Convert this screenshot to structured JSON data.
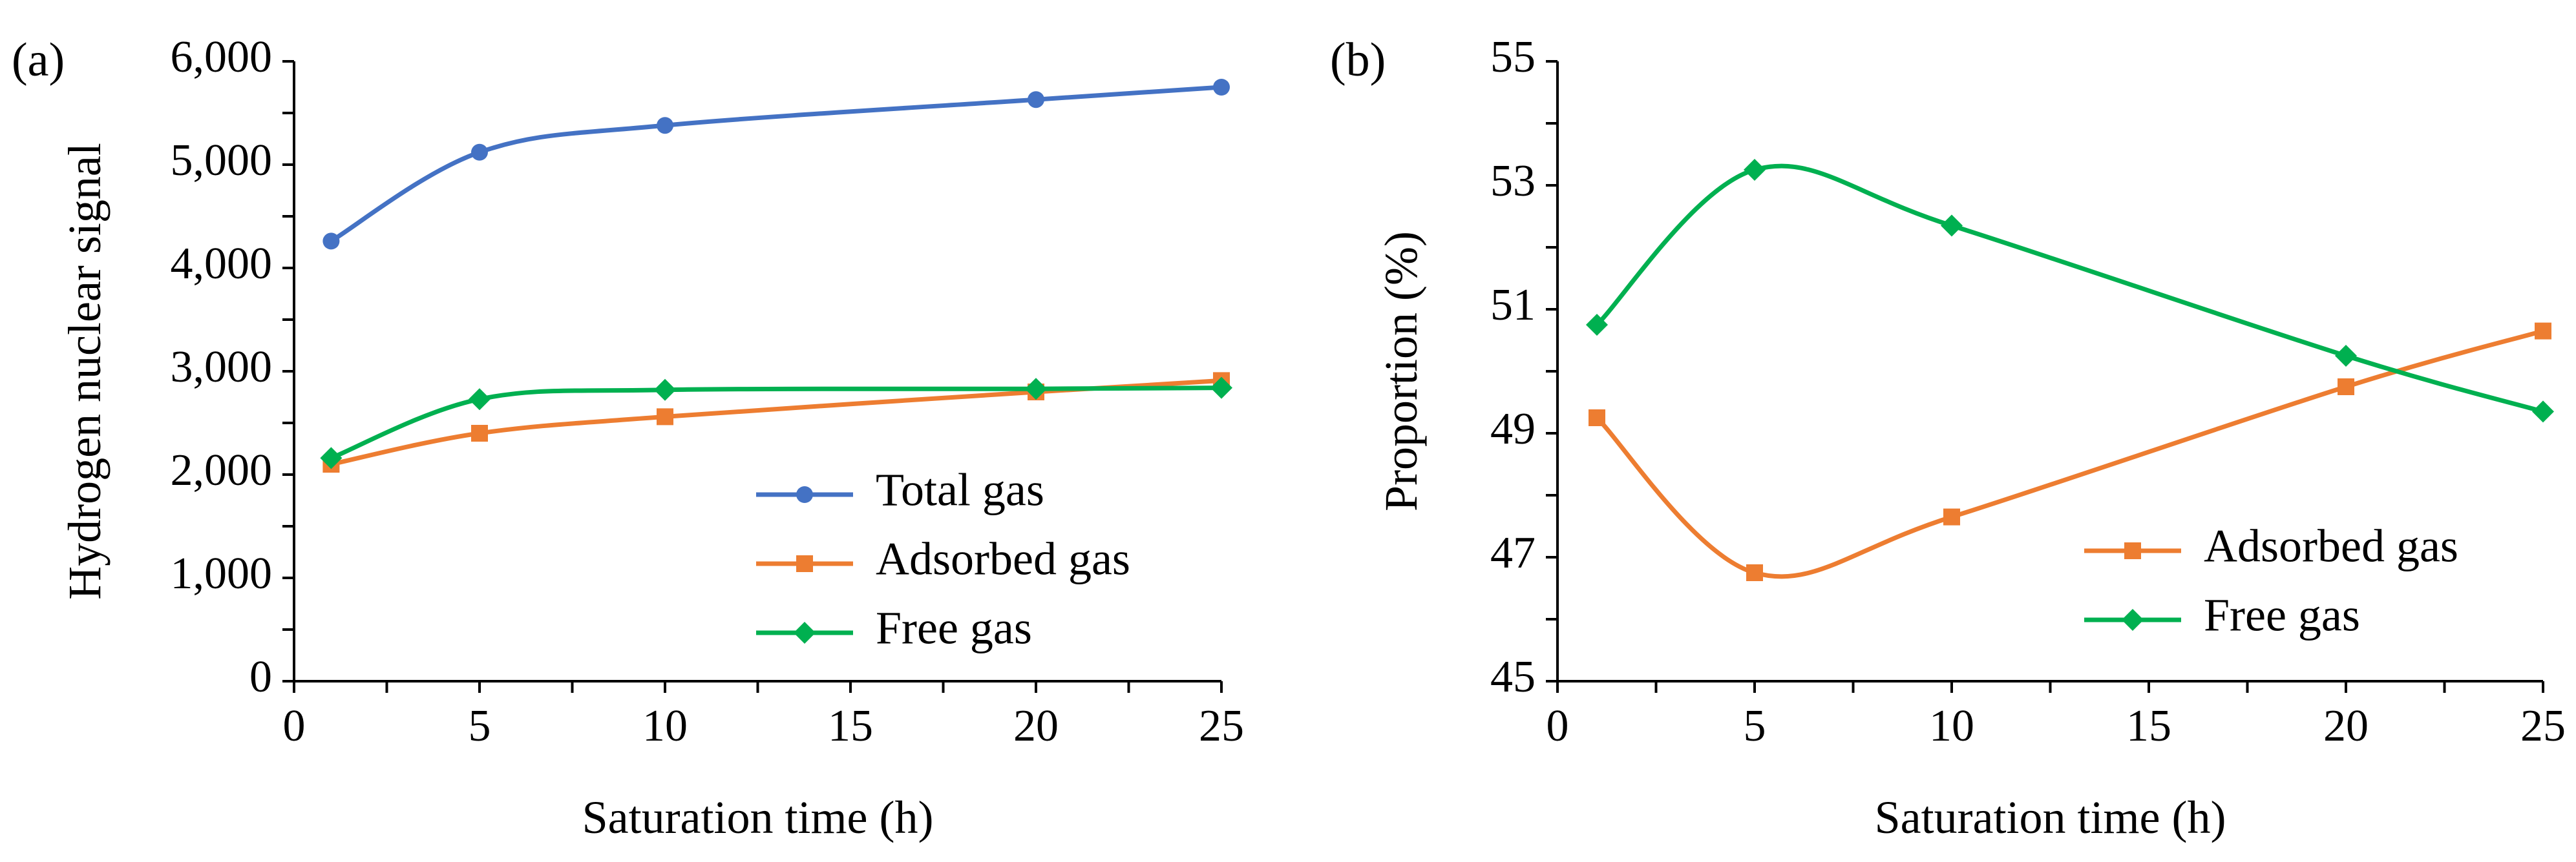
{
  "chart_data": [
    {
      "panel_label": "(a)",
      "type": "line",
      "title": "",
      "xlabel": "Saturation time (h)",
      "ylabel": "Hydrogen nuclear signal",
      "xlim": [
        0,
        25
      ],
      "ylim": [
        0,
        6000
      ],
      "x_ticks": [
        0,
        5,
        10,
        15,
        20,
        25
      ],
      "x_tick_labels": [
        "0",
        "5",
        "10",
        "15",
        "20",
        "25"
      ],
      "y_ticks": [
        0,
        1000,
        2000,
        3000,
        4000,
        5000,
        6000
      ],
      "y_tick_labels": [
        "0",
        "1,000",
        "2,000",
        "3,000",
        "4,000",
        "5,000",
        "6,000"
      ],
      "grid": false,
      "legend_position": "bottom-right",
      "x": [
        1,
        5,
        10,
        20,
        25
      ],
      "series": [
        {
          "name": "Total gas",
          "color": "#4472C4",
          "marker": "circle",
          "values": [
            4260,
            5120,
            5380,
            5630,
            5750
          ]
        },
        {
          "name": "Adsorbed gas",
          "color": "#ED7D31",
          "marker": "square",
          "values": [
            2100,
            2400,
            2560,
            2800,
            2910
          ]
        },
        {
          "name": "Free gas",
          "color": "#00B050",
          "marker": "diamond",
          "values": [
            2160,
            2730,
            2820,
            2830,
            2840
          ]
        }
      ]
    },
    {
      "panel_label": "(b)",
      "type": "line",
      "title": "",
      "xlabel": "Saturation time (h)",
      "ylabel": "Proportion (%)",
      "xlim": [
        0,
        25
      ],
      "ylim": [
        45,
        55
      ],
      "x_ticks": [
        0,
        5,
        10,
        15,
        20,
        25
      ],
      "x_tick_labels": [
        "0",
        "5",
        "10",
        "15",
        "20",
        "25"
      ],
      "y_ticks": [
        45,
        47,
        49,
        51,
        53,
        55
      ],
      "y_tick_labels": [
        "45",
        "47",
        "49",
        "51",
        "53",
        "55"
      ],
      "grid": false,
      "legend_position": "bottom-right",
      "x": [
        1,
        5,
        10,
        20,
        25
      ],
      "series": [
        {
          "name": "Adsorbed gas",
          "color": "#ED7D31",
          "marker": "square",
          "values": [
            49.25,
            46.75,
            47.65,
            49.75,
            50.65
          ]
        },
        {
          "name": "Free gas",
          "color": "#00B050",
          "marker": "diamond",
          "values": [
            50.75,
            53.25,
            52.35,
            50.25,
            49.35
          ]
        }
      ]
    }
  ]
}
